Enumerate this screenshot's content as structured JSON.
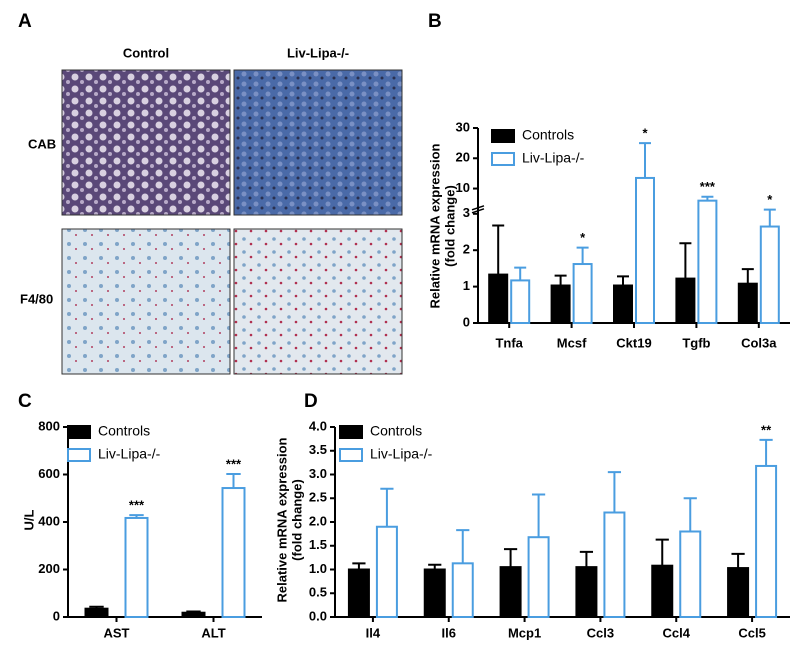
{
  "panel_labels": [
    "A",
    "B",
    "C",
    "D"
  ],
  "panel_a": {
    "columns": [
      "Control",
      "Liv-Lipa-/-"
    ],
    "rows": [
      "CAB",
      "F4/80"
    ]
  },
  "chart_data": [
    {
      "type": "bar",
      "ylabel": [
        "Relative mRNA expression",
        "(fold change)"
      ],
      "categories": [
        "Tnfa",
        "Mcsf",
        "Ckt19",
        "Tgfb",
        "Col3a"
      ],
      "series": [
        {
          "name": "Controls",
          "color": "#000000",
          "filled": true,
          "values": [
            1.33,
            1.03,
            1.03,
            1.22,
            1.08
          ],
          "errors": [
            1.35,
            0.27,
            0.25,
            0.97,
            0.4
          ],
          "significance": [
            null,
            null,
            null,
            null,
            null
          ]
        },
        {
          "name": "Liv-Lipa-/-",
          "color": "#4a9de0",
          "filled": false,
          "values": [
            1.17,
            1.62,
            13.5,
            6,
            2.65
          ],
          "errors": [
            0.35,
            0.45,
            11.5,
            1.3,
            0.4
          ],
          "significance": [
            null,
            "*",
            "*",
            "***",
            "*"
          ]
        }
      ],
      "ylim": [
        0,
        30
      ],
      "y_break": [
        3,
        4.3
      ],
      "yticks": [
        0,
        1,
        2,
        3,
        10,
        20,
        30
      ],
      "legend": "top-left"
    },
    {
      "type": "bar",
      "ylabel": [
        "U/L"
      ],
      "categories": [
        "AST",
        "ALT"
      ],
      "series": [
        {
          "name": "Controls",
          "color": "#000000",
          "filled": true,
          "values": [
            35,
            18
          ],
          "errors": [
            8,
            5
          ],
          "significance": [
            null,
            null
          ]
        },
        {
          "name": "Liv-Lipa-/-",
          "color": "#4a9de0",
          "filled": false,
          "values": [
            417,
            543
          ],
          "errors": [
            12,
            59
          ],
          "significance": [
            "***",
            "***"
          ]
        }
      ],
      "ylim": [
        0,
        800
      ],
      "yticks": [
        0,
        200,
        400,
        600,
        800
      ],
      "legend": "top-left"
    },
    {
      "type": "bar",
      "ylabel": [
        "Relative mRNA expression",
        "(fold change)"
      ],
      "categories": [
        "Il4",
        "Il6",
        "Mcp1",
        "Ccl3",
        "Ccl4",
        "Ccl5"
      ],
      "series": [
        {
          "name": "Controls",
          "color": "#000000",
          "filled": true,
          "values": [
            1.0,
            1.0,
            1.05,
            1.05,
            1.08,
            1.03
          ],
          "errors": [
            0.13,
            0.1,
            0.38,
            0.32,
            0.55,
            0.3
          ],
          "significance": [
            null,
            null,
            null,
            null,
            null,
            null
          ]
        },
        {
          "name": "Liv-Lipa-/-",
          "color": "#4a9de0",
          "filled": false,
          "values": [
            1.9,
            1.13,
            1.68,
            2.2,
            1.8,
            3.18
          ],
          "errors": [
            0.8,
            0.7,
            0.9,
            0.85,
            0.7,
            0.55
          ],
          "significance": [
            null,
            null,
            null,
            null,
            null,
            "**"
          ]
        }
      ],
      "ylim": [
        0,
        4
      ],
      "yticks": [
        {
          "value": 0,
          "label": "0.0"
        },
        {
          "value": 0.5,
          "label": "0.5"
        },
        {
          "value": 1,
          "label": "1.0"
        },
        {
          "value": 1.5,
          "label": "1.5"
        },
        {
          "value": 2,
          "label": "2.0"
        },
        {
          "value": 2.5,
          "label": "2.5"
        },
        {
          "value": 3,
          "label": "3.0"
        },
        {
          "value": 3.5,
          "label": "3.5"
        },
        {
          "value": 4,
          "label": "4.0"
        }
      ],
      "legend": "top-left"
    }
  ]
}
